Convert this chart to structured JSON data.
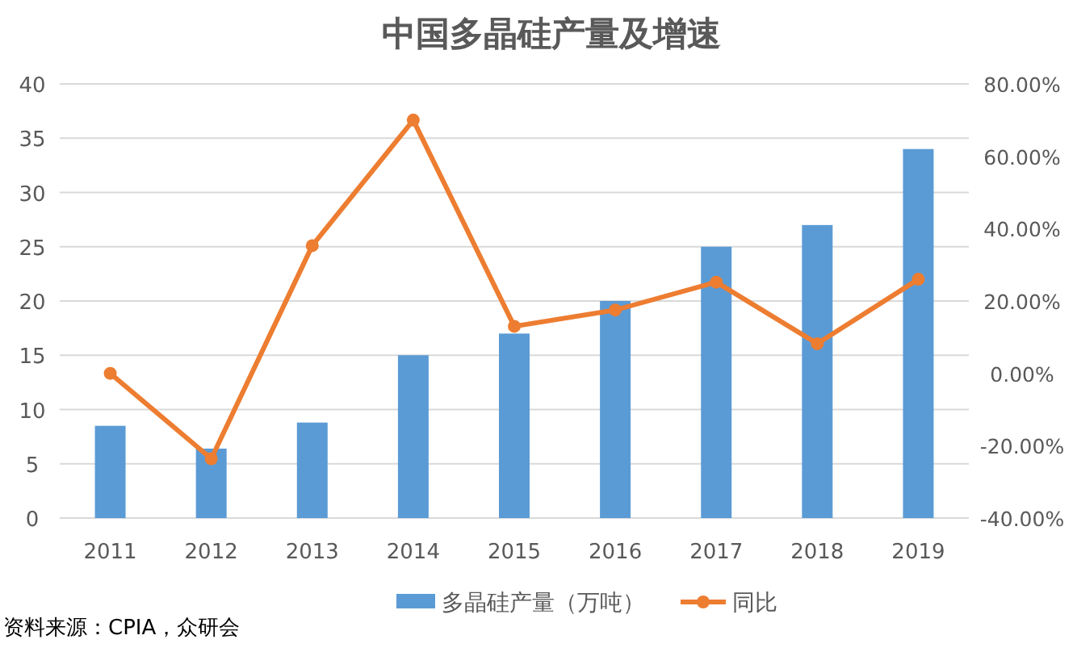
{
  "chart_data": {
    "type": "bar",
    "title": "中国多晶硅产量及增速",
    "categories": [
      "2011",
      "2012",
      "2013",
      "2014",
      "2015",
      "2016",
      "2017",
      "2018",
      "2019"
    ],
    "series": [
      {
        "name": "多晶硅产量（万吨）",
        "color": "#5b9bd5",
        "values": [
          8.5,
          6.4,
          8.8,
          15,
          17,
          20,
          25,
          27,
          34
        ]
      },
      {
        "name": "同比",
        "type": "line",
        "axis": "y2",
        "color": "#ed7d31",
        "marker": "circle",
        "values": [
          0,
          -23.6,
          35.3,
          70,
          13,
          17.5,
          25.2,
          8.2,
          26
        ]
      }
    ],
    "ylim": [
      0,
      40
    ],
    "yticks": [
      0,
      5,
      10,
      15,
      20,
      25,
      30,
      35,
      40
    ],
    "y2lim": [
      -40,
      80
    ],
    "y2ticks": [
      {
        "value": -40,
        "label": "-40.00%"
      },
      {
        "value": -20,
        "label": "-20.00%"
      },
      {
        "value": 0,
        "label": "0.00%"
      },
      {
        "value": 20,
        "label": "20.00%"
      },
      {
        "value": 40,
        "label": "40.00%"
      },
      {
        "value": 60,
        "label": "60.00%"
      },
      {
        "value": 80,
        "label": "80.00%"
      }
    ],
    "grid": "y",
    "legend": "bottom",
    "annotations": [
      "资料来源：CPIA，众研会"
    ]
  }
}
